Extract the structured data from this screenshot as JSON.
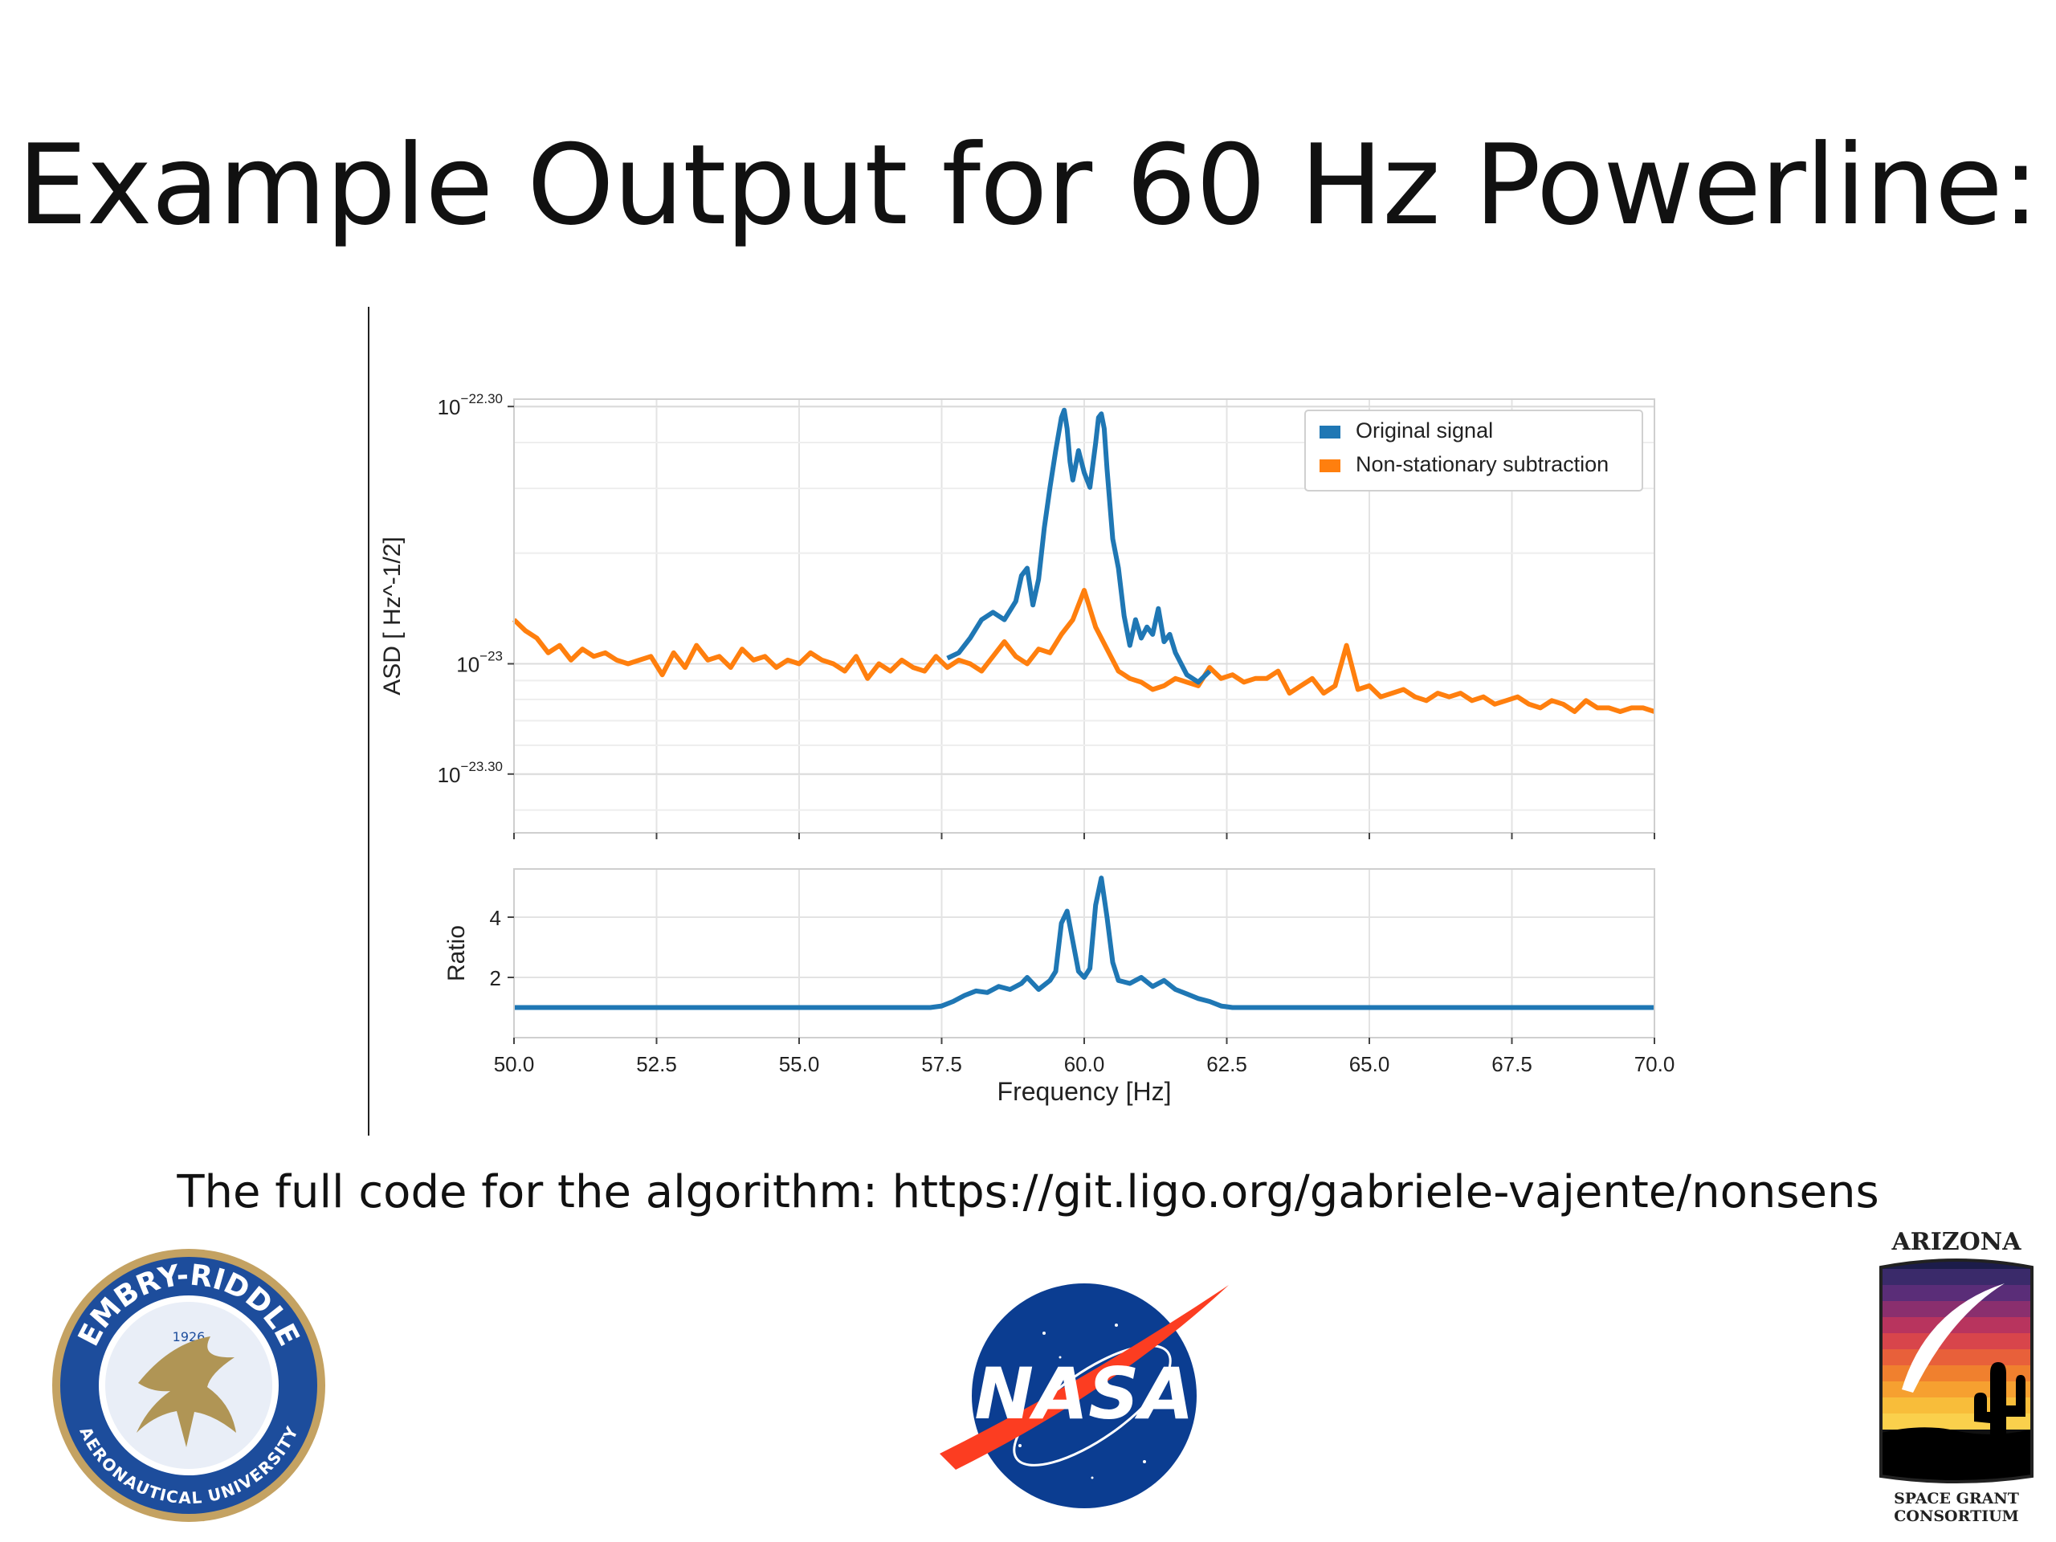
{
  "slide": {
    "title": "Example Output for 60 Hz Powerline:",
    "caption": "The full code for the algorithm: https://git.ligo.org/gabriele-vajente/nonsens"
  },
  "logos": {
    "erau": {
      "name": "EMBRY-RIDDLE",
      "sub": "AERONAUTICAL UNIVERSITY",
      "year": "1926"
    },
    "nasa": {
      "name": "NASA"
    },
    "arizona": {
      "top": "ARIZONA",
      "bottom1": "SPACE GRANT",
      "bottom2": "CONSORTIUM"
    }
  },
  "colors": {
    "original": "#1f77b4",
    "subtraction": "#ff7f0e"
  },
  "chart_data": [
    {
      "type": "line",
      "ylabel": "ASD [ Hz^-1/2]",
      "yscale": "log",
      "ylim_log10": [
        -23.46,
        -22.28
      ],
      "yticks": [
        {
          "log10": -22.3,
          "label_base": "10",
          "label_exp": "−22.30"
        },
        {
          "log10": -23.0,
          "label_base": "10",
          "label_exp": "−23"
        },
        {
          "log10": -23.3,
          "label_base": "10",
          "label_exp": "−23.30"
        }
      ],
      "xlim": [
        50,
        70
      ],
      "grid": true,
      "legend_placement": "top-right",
      "series": [
        {
          "name": "Original signal",
          "color": "#1f77b4",
          "x": [
            57.6,
            57.8,
            58.0,
            58.2,
            58.4,
            58.6,
            58.8,
            58.9,
            59.0,
            59.1,
            59.2,
            59.3,
            59.4,
            59.5,
            59.6,
            59.65,
            59.7,
            59.75,
            59.8,
            59.9,
            60.0,
            60.1,
            60.2,
            60.25,
            60.3,
            60.35,
            60.4,
            60.5,
            60.6,
            60.7,
            60.8,
            60.9,
            61.0,
            61.1,
            61.2,
            61.3,
            61.4,
            61.5,
            61.6,
            61.8,
            62.0,
            62.2
          ],
          "y_log10": [
            -22.985,
            -22.97,
            -22.93,
            -22.88,
            -22.86,
            -22.88,
            -22.83,
            -22.76,
            -22.74,
            -22.84,
            -22.77,
            -22.63,
            -22.52,
            -22.42,
            -22.33,
            -22.31,
            -22.36,
            -22.45,
            -22.5,
            -22.42,
            -22.48,
            -22.52,
            -22.4,
            -22.33,
            -22.32,
            -22.36,
            -22.47,
            -22.66,
            -22.74,
            -22.87,
            -22.95,
            -22.88,
            -22.93,
            -22.9,
            -22.92,
            -22.85,
            -22.94,
            -22.92,
            -22.97,
            -23.03,
            -23.05,
            -23.02
          ]
        },
        {
          "name": "Non-stationary subtraction",
          "color": "#ff7f0e",
          "x": [
            50.0,
            50.2,
            50.4,
            50.6,
            50.8,
            51.0,
            51.2,
            51.4,
            51.6,
            51.8,
            52.0,
            52.2,
            52.4,
            52.6,
            52.8,
            53.0,
            53.2,
            53.4,
            53.6,
            53.8,
            54.0,
            54.2,
            54.4,
            54.6,
            54.8,
            55.0,
            55.2,
            55.4,
            55.6,
            55.8,
            56.0,
            56.2,
            56.4,
            56.6,
            56.8,
            57.0,
            57.2,
            57.4,
            57.6,
            57.8,
            58.0,
            58.2,
            58.4,
            58.6,
            58.8,
            59.0,
            59.2,
            59.4,
            59.6,
            59.8,
            60.0,
            60.2,
            60.4,
            60.6,
            60.8,
            61.0,
            61.2,
            61.4,
            61.6,
            61.8,
            62.0,
            62.2,
            62.4,
            62.6,
            62.8,
            63.0,
            63.2,
            63.4,
            63.6,
            63.8,
            64.0,
            64.2,
            64.4,
            64.6,
            64.8,
            65.0,
            65.2,
            65.4,
            65.6,
            65.8,
            66.0,
            66.2,
            66.4,
            66.6,
            66.8,
            67.0,
            67.2,
            67.4,
            67.6,
            67.8,
            68.0,
            68.2,
            68.4,
            68.6,
            68.8,
            69.0,
            69.2,
            69.4,
            69.6,
            69.8,
            70.0
          ],
          "y_log10": [
            -22.88,
            -22.91,
            -22.93,
            -22.97,
            -22.95,
            -22.99,
            -22.96,
            -22.98,
            -22.97,
            -22.99,
            -23.0,
            -22.99,
            -22.98,
            -23.03,
            -22.97,
            -23.01,
            -22.95,
            -22.99,
            -22.98,
            -23.01,
            -22.96,
            -22.99,
            -22.98,
            -23.01,
            -22.99,
            -23.0,
            -22.97,
            -22.99,
            -23.0,
            -23.02,
            -22.98,
            -23.04,
            -23.0,
            -23.02,
            -22.99,
            -23.01,
            -23.02,
            -22.98,
            -23.01,
            -22.99,
            -23.0,
            -23.02,
            -22.98,
            -22.94,
            -22.98,
            -23.0,
            -22.96,
            -22.97,
            -22.92,
            -22.88,
            -22.8,
            -22.9,
            -22.96,
            -23.02,
            -23.04,
            -23.05,
            -23.07,
            -23.06,
            -23.04,
            -23.05,
            -23.06,
            -23.01,
            -23.04,
            -23.03,
            -23.05,
            -23.04,
            -23.04,
            -23.02,
            -23.08,
            -23.06,
            -23.04,
            -23.08,
            -23.06,
            -22.95,
            -23.07,
            -23.06,
            -23.09,
            -23.08,
            -23.07,
            -23.09,
            -23.1,
            -23.08,
            -23.09,
            -23.08,
            -23.1,
            -23.09,
            -23.11,
            -23.1,
            -23.09,
            -23.11,
            -23.12,
            -23.1,
            -23.11,
            -23.13,
            -23.1,
            -23.12,
            -23.12,
            -23.13,
            -23.12,
            -23.12,
            -23.13
          ]
        }
      ]
    },
    {
      "type": "line",
      "ylabel": "Ratio",
      "xlabel": "Frequency [Hz]",
      "xlim": [
        50,
        70
      ],
      "ylim": [
        0,
        5.6
      ],
      "yticks": [
        2,
        4
      ],
      "xticks": [
        50.0,
        52.5,
        55.0,
        57.5,
        60.0,
        62.5,
        65.0,
        67.5,
        70.0
      ],
      "xtick_labels": [
        "50.0",
        "52.5",
        "55.0",
        "57.5",
        "60.0",
        "62.5",
        "65.0",
        "67.5",
        "70.0"
      ],
      "grid": true,
      "series": [
        {
          "color": "#1f77b4",
          "x": [
            50.0,
            57.3,
            57.5,
            57.7,
            57.9,
            58.1,
            58.3,
            58.5,
            58.7,
            58.9,
            59.0,
            59.2,
            59.4,
            59.5,
            59.6,
            59.7,
            59.8,
            59.9,
            60.0,
            60.1,
            60.2,
            60.3,
            60.4,
            60.5,
            60.6,
            60.8,
            61.0,
            61.2,
            61.4,
            61.6,
            61.8,
            62.0,
            62.2,
            62.4,
            62.6,
            62.8,
            63.0,
            70.0
          ],
          "y": [
            1.0,
            1.0,
            1.05,
            1.2,
            1.4,
            1.55,
            1.5,
            1.7,
            1.6,
            1.8,
            2.0,
            1.6,
            1.9,
            2.2,
            3.8,
            4.2,
            3.2,
            2.2,
            2.0,
            2.3,
            4.4,
            5.3,
            4.0,
            2.5,
            1.9,
            1.8,
            2.0,
            1.7,
            1.9,
            1.6,
            1.45,
            1.3,
            1.2,
            1.05,
            1.0,
            1.0,
            1.0,
            1.0
          ]
        }
      ]
    }
  ]
}
